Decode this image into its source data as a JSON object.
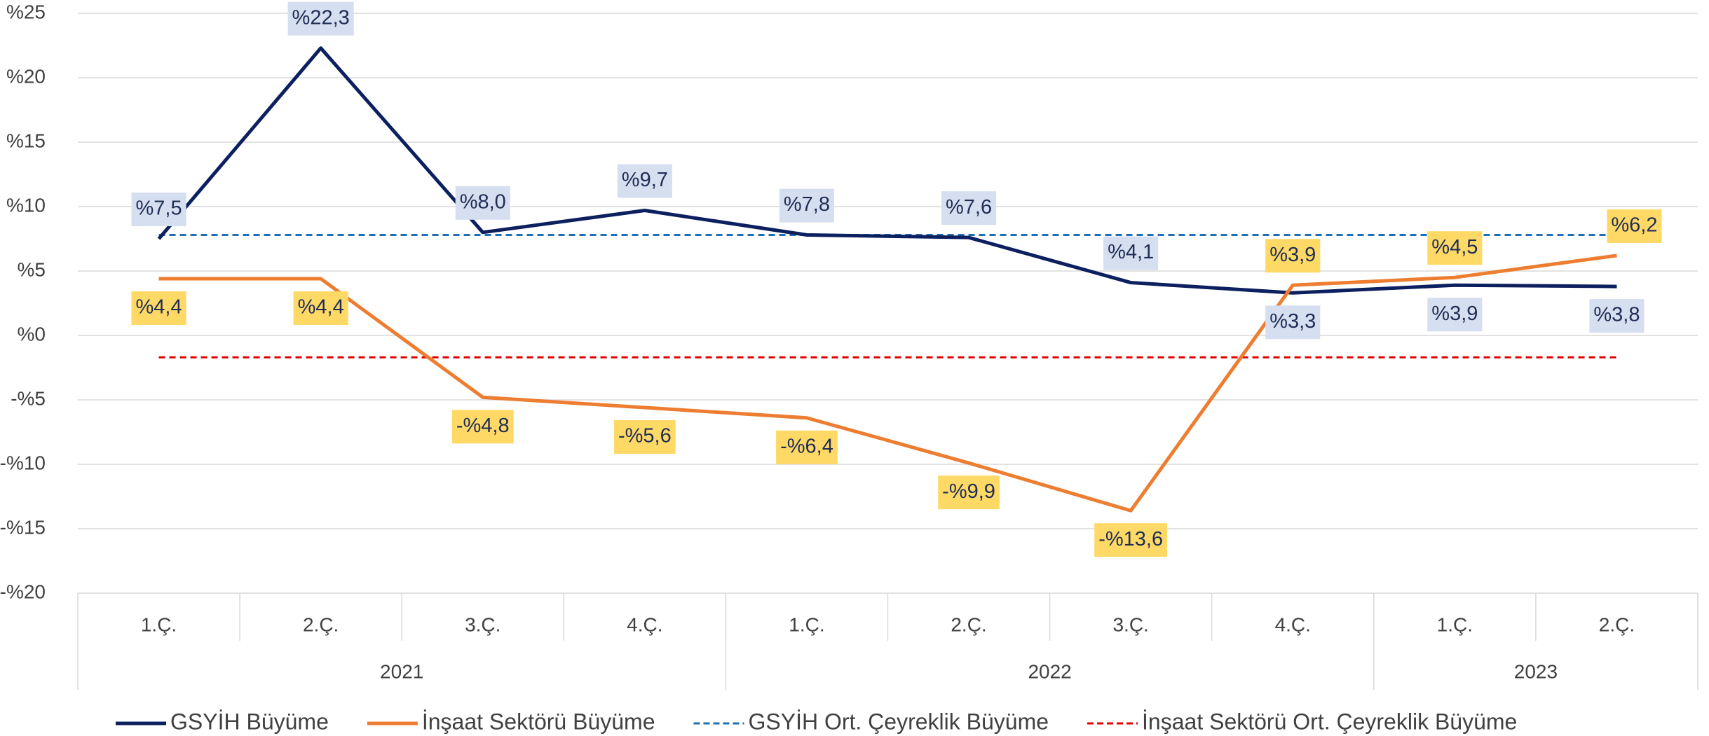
{
  "chart_data": {
    "type": "line",
    "categories": [
      "1.Ç.",
      "2.Ç.",
      "3.Ç.",
      "4.Ç.",
      "1.Ç.",
      "2.Ç.",
      "3.Ç.",
      "4.Ç.",
      "1.Ç.",
      "2.Ç."
    ],
    "year_groups": [
      {
        "label": "2021",
        "span": 4
      },
      {
        "label": "2022",
        "span": 4
      },
      {
        "label": "2023",
        "span": 2
      }
    ],
    "series": [
      {
        "name": "GSYİH Büyüme",
        "color": "#0c1f5e",
        "label_bg": "#d6dff0",
        "values": [
          7.5,
          22.3,
          8.0,
          9.7,
          7.8,
          7.6,
          4.1,
          3.3,
          3.9,
          3.8
        ],
        "value_labels": [
          "%7,5",
          "%22,3",
          "%8,0",
          "%9,7",
          "%7,8",
          "%7,6",
          "%4,1",
          "%3,3",
          "%3,9",
          "%3,8"
        ]
      },
      {
        "name": "İnşaat Sektörü Büyüme",
        "color": "#ed7d31",
        "label_bg": "#ffd966",
        "values": [
          4.4,
          4.4,
          -4.8,
          -5.6,
          -6.4,
          -9.9,
          -13.6,
          3.9,
          4.5,
          6.2
        ],
        "value_labels": [
          "%4,4",
          "%4,4",
          "-%4,8",
          "-%5,6",
          "-%6,4",
          "-%9,9",
          "-%13,6",
          "%3,9",
          "%4,5",
          "%6,2"
        ]
      }
    ],
    "reference_lines": [
      {
        "name": "GSYİH Ort. Çeyreklik Büyüme",
        "color": "#1f6fb4",
        "value": 7.8
      },
      {
        "name": "İnşaat Sektörü Ort. Çeyreklik Büyüme",
        "color": "#e00000",
        "value": -1.7
      }
    ],
    "ylim": [
      -20,
      25
    ],
    "yticks": [
      {
        "value": -20,
        "label": "-%20"
      },
      {
        "value": -15,
        "label": "-%15"
      },
      {
        "value": -10,
        "label": "-%10"
      },
      {
        "value": -5,
        "label": "-%5"
      },
      {
        "value": 0,
        "label": "%0"
      },
      {
        "value": 5,
        "label": "%5"
      },
      {
        "value": 10,
        "label": "%10"
      },
      {
        "value": 15,
        "label": "%15"
      },
      {
        "value": 20,
        "label": "%20"
      },
      {
        "value": 25,
        "label": "%25"
      }
    ],
    "grid": true
  }
}
